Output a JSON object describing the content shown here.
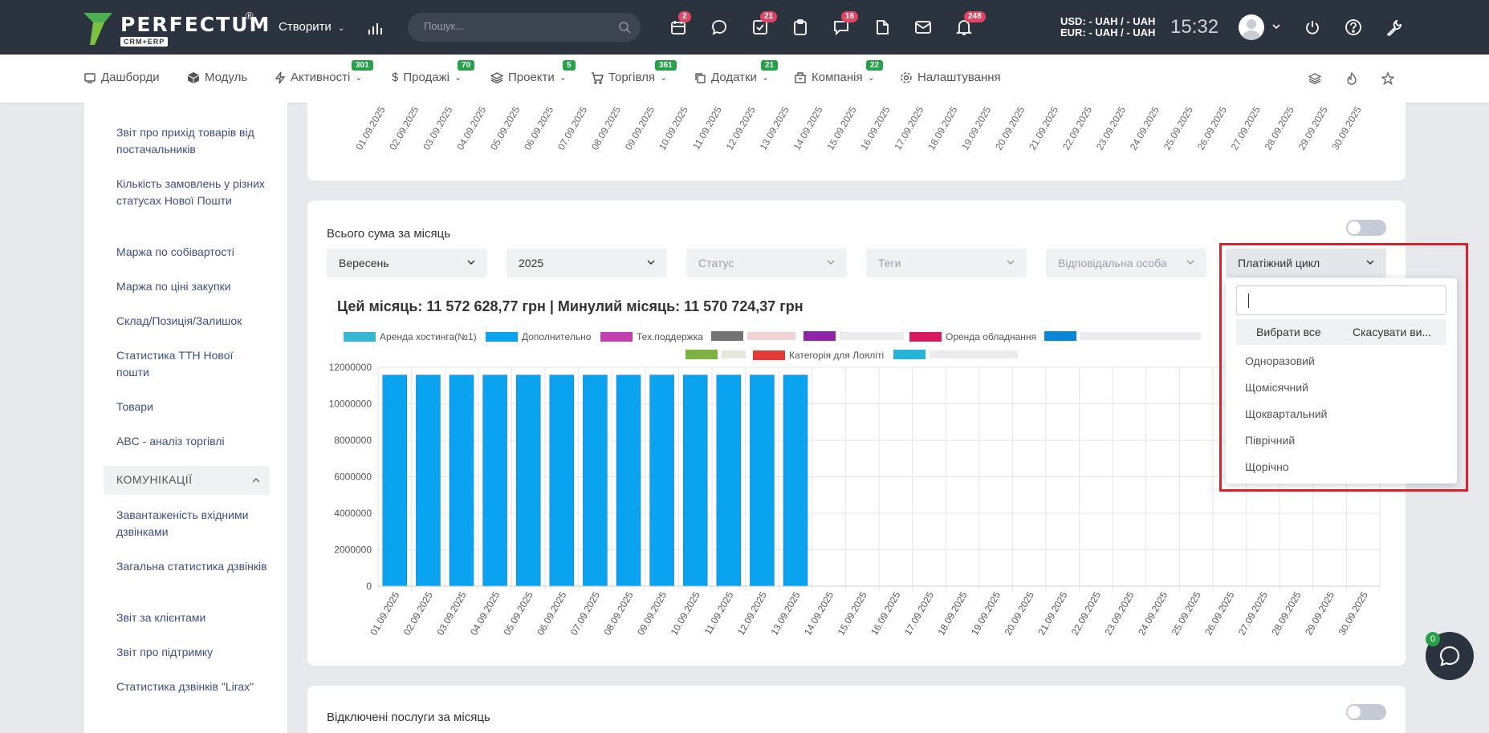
{
  "topbar": {
    "logo_text": "PERFECTUM",
    "logo_reg": "®",
    "logo_sub": "CRM+ERP",
    "create_label": "Створити",
    "search_placeholder": "Пошук...",
    "badges": {
      "calendar": "2",
      "tasks": "21",
      "messages": "16",
      "notifications": "248"
    },
    "currency_usd": "USD: - UAH / - UAH",
    "currency_eur": "EUR: - UAH / - UAH",
    "time": "15:32"
  },
  "nav": {
    "items": [
      {
        "label": "Дашборди",
        "badge": ""
      },
      {
        "label": "Модуль",
        "badge": ""
      },
      {
        "label": "Активності",
        "badge": "301"
      },
      {
        "label": "Продажі",
        "badge": "70"
      },
      {
        "label": "Проекти",
        "badge": "5"
      },
      {
        "label": "Торгівля",
        "badge": "361"
      },
      {
        "label": "Додатки",
        "badge": "21"
      },
      {
        "label": "Компанія",
        "badge": "22"
      },
      {
        "label": "Налаштування",
        "badge": ""
      }
    ]
  },
  "sidebar": {
    "links_top": [
      "Звіт про прихід товарів від постачальників",
      "Кількість замовлень у різних статусах Нової Пошти",
      "Маржа по собівартості",
      "Маржа по ціні закупки",
      "Склад/Позиція/Залишок",
      "Статистика ТТН Нової пошти",
      "Товари",
      "ABC - аналіз торгівлі"
    ],
    "section": "КОМУНІКАЦІЇ",
    "links_bottom": [
      "Завантаженість вхідними дзвінками",
      "Загальна статистика дзвінків",
      "Звіт за клієнтами",
      "Звіт про підтримку",
      "Статистика дзвінків \"Lirax\""
    ]
  },
  "card_main": {
    "title": "Всього сума за місяць",
    "filters": {
      "month": "Вересень",
      "year": "2025",
      "status": "Статус",
      "tags": "Теги",
      "responsible": "Відповідальна особа",
      "payment_cycle": "Платіжний цикл"
    },
    "heading": "Цей місяць: 11 572 628,77 грн | Минулий місяць: 11 570 724,37 грн",
    "legend": [
      {
        "label": "Аренда хостинга(№1)",
        "color": "#38b6d6"
      },
      {
        "label": "Дополнительно",
        "color": "#0aa3ef"
      },
      {
        "label": "Тех.поддержка",
        "color": "#c23fb0"
      },
      {
        "label": "",
        "color": "#737373"
      },
      {
        "label": "",
        "color": "#8e24aa"
      },
      {
        "label": "Оренда обладнання",
        "color": "#d81b60"
      },
      {
        "label": "",
        "color": "#0a86d6"
      },
      {
        "label": "",
        "color": "#7cb342"
      },
      {
        "label": "Категорія для Лояліті",
        "color": "#e53935"
      },
      {
        "label": "",
        "color": "#26b5d9"
      }
    ]
  },
  "dropdown": {
    "select_all": "Вибрати все",
    "deselect_all": "Скасувати ви...",
    "options": [
      "Одноразовий",
      "Щомісячний",
      "Щоквартальний",
      "Піврічний",
      "Щорічно"
    ]
  },
  "card_bottom": {
    "title": "Відключені послуги за місяць"
  },
  "chat_badge": "0",
  "chart_data": [
    {
      "type": "bar",
      "x": [
        "01.09.2025",
        "02.09.2025",
        "03.09.2025",
        "04.09.2025",
        "05.09.2025",
        "06.09.2025",
        "07.09.2025",
        "08.09.2025",
        "09.09.2025",
        "10.09.2025",
        "11.09.2025",
        "12.09.2025",
        "13.09.2025",
        "14.09.2025",
        "15.09.2025",
        "16.09.2025",
        "17.09.2025",
        "18.09.2025",
        "19.09.2025",
        "20.09.2025",
        "21.09.2025",
        "22.09.2025",
        "23.09.2025",
        "24.09.2025",
        "25.09.2025",
        "26.09.2025",
        "27.09.2025",
        "28.09.2025",
        "29.09.2025",
        "30.09.2025"
      ],
      "series": [
        {
          "name": "Дополнительно",
          "color": "#0aa3ef",
          "values": [
            11572628,
            11572628,
            11572628,
            11572628,
            11572628,
            11572628,
            11572628,
            11572628,
            11572628,
            11572628,
            11572628,
            11572628,
            11572628,
            0,
            0,
            0,
            0,
            0,
            0,
            0,
            0,
            0,
            0,
            0,
            0,
            0,
            0,
            0,
            0,
            0
          ]
        }
      ],
      "y_ticks": [
        "0",
        "2000000",
        "4000000",
        "6000000",
        "8000000",
        "10000000",
        "12000000"
      ],
      "ylim": [
        0,
        12000000
      ],
      "grid": true
    }
  ]
}
